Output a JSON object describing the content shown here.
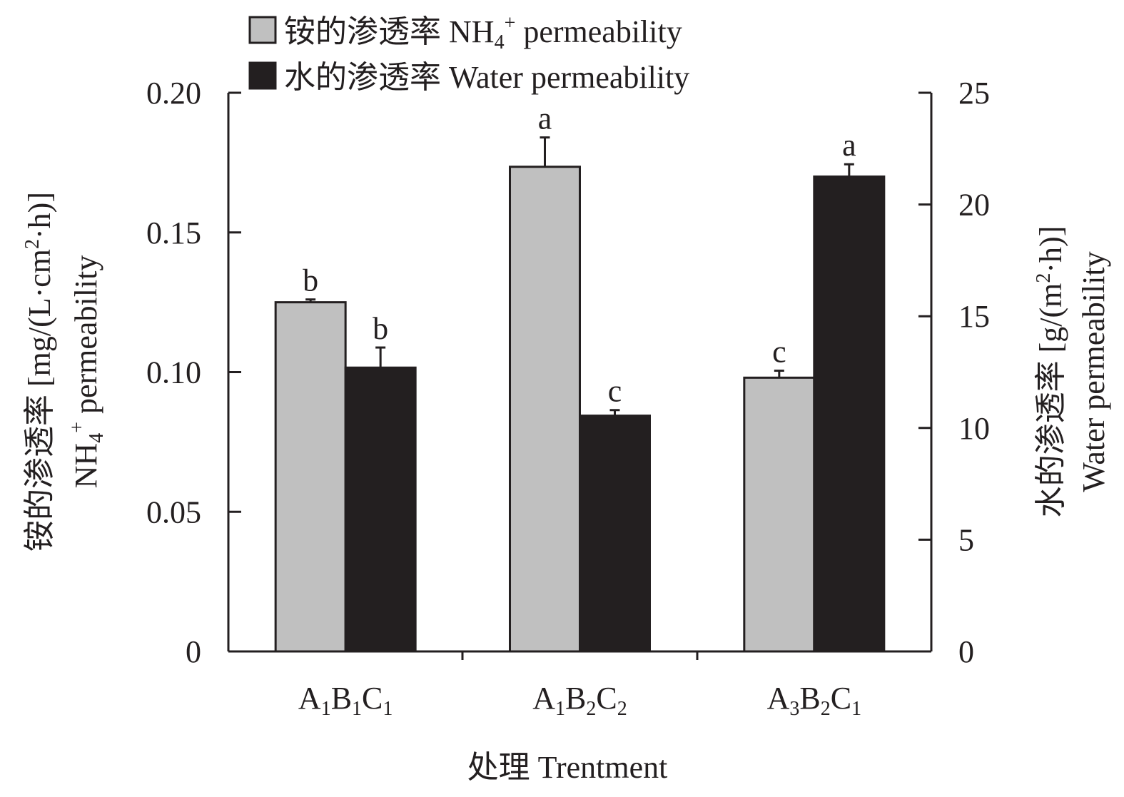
{
  "chart_data": {
    "type": "bar",
    "categories": [
      {
        "id": "A1B1C1",
        "parts": [
          [
            "A",
            "1"
          ],
          [
            "B",
            "1"
          ],
          [
            "C",
            "1"
          ]
        ]
      },
      {
        "id": "A1B2C2",
        "parts": [
          [
            "A",
            "1"
          ],
          [
            "B",
            "2"
          ],
          [
            "C",
            "2"
          ]
        ]
      },
      {
        "id": "A3B2C1",
        "parts": [
          [
            "A",
            "3"
          ],
          [
            "B",
            "2"
          ],
          [
            "C",
            "1"
          ]
        ]
      }
    ],
    "series": [
      {
        "name": "铵的渗透率 NH4+ permeability",
        "axis": "left",
        "color": "#c0c0c0",
        "values": [
          0.125,
          0.1735,
          0.098
        ],
        "errors": [
          0.001,
          0.0105,
          0.0025
        ],
        "sig_labels": [
          "b",
          "a",
          "c"
        ]
      },
      {
        "name": "水的渗透率 Water permeability",
        "axis": "right",
        "color": "#231f20",
        "values": [
          12.7,
          10.55,
          21.25
        ],
        "errors": [
          0.9,
          0.25,
          0.55
        ],
        "sig_labels": [
          "b",
          "c",
          "a"
        ]
      }
    ],
    "left_axis": {
      "range": [
        0,
        0.2
      ],
      "ticks": [
        0,
        0.05,
        0.1,
        0.15,
        0.2
      ],
      "tick_labels": [
        "0",
        "0.05",
        "0.10",
        "0.15",
        "0.20"
      ],
      "title_line1": "铵的渗透率 [mg/(L·cm²·h)]",
      "title_line2": "NH4+ permeability"
    },
    "right_axis": {
      "range": [
        0,
        25
      ],
      "ticks": [
        0,
        5,
        10,
        15,
        20,
        25
      ],
      "tick_labels": [
        "0",
        "5",
        "10",
        "15",
        "20",
        "25"
      ],
      "title_line1": "水的渗透率 [g/(m²·h)]",
      "title_line2": "Water permeability"
    },
    "x_axis_title": "处理 Trentment",
    "legend": {
      "position": "top-left",
      "entries": [
        {
          "prefix": "铵的渗透率 NH",
          "sub": "4",
          "sup": "+",
          "suffix": " permeability",
          "color": "#c0c0c0"
        },
        {
          "prefix": "水的渗透率 Water permeability",
          "sub": "",
          "sup": "",
          "suffix": "",
          "color": "#231f20"
        }
      ]
    },
    "left_title_parts": {
      "l1_prefix": "铵的渗透率 [mg/(L·cm",
      "l1_sup": "2",
      "l1_suffix": "·h)]",
      "l2_prefix": "NH",
      "l2_sub": "4",
      "l2_sup": "+",
      "l2_suffix": " permeability"
    },
    "right_title_parts": {
      "l1_prefix": "水的渗透率 [g/(m",
      "l1_sup": "2",
      "l1_suffix": "·h)]",
      "l2": "Water permeability"
    }
  }
}
